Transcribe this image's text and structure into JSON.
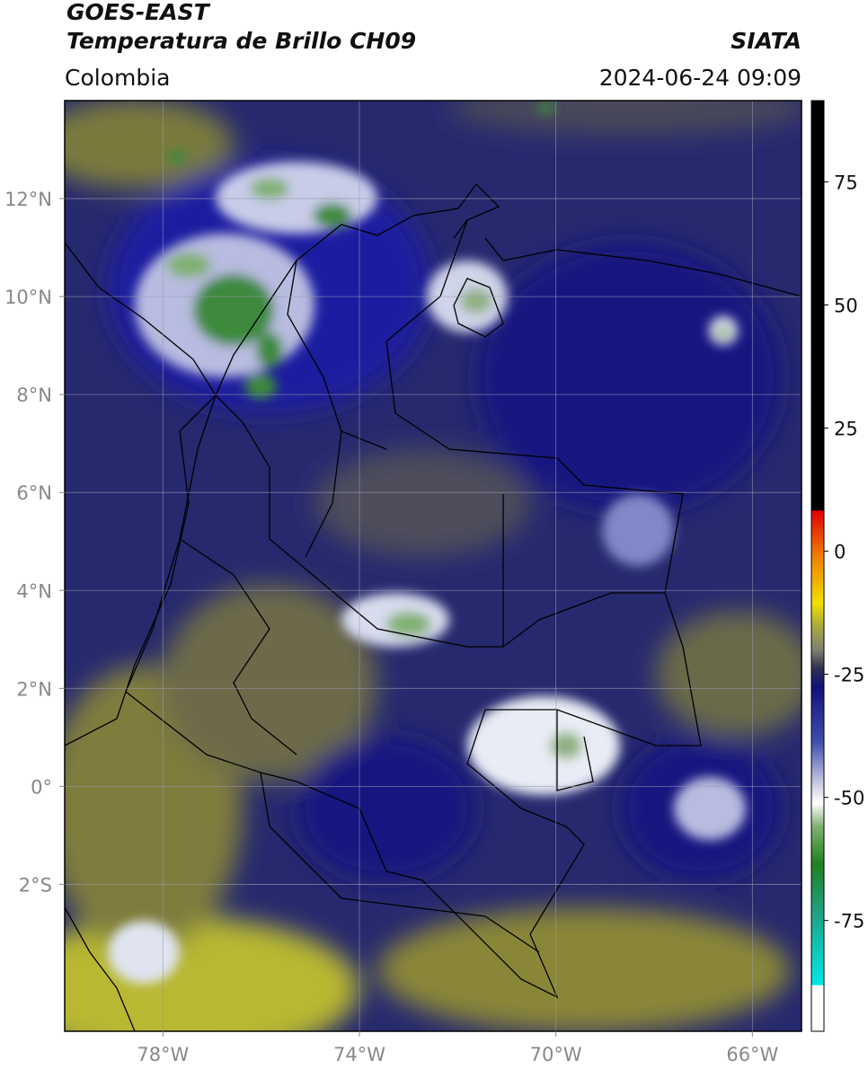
{
  "header": {
    "title": "GOES-EAST",
    "subtitle": "Temperatura de Brillo CH09",
    "source": "SIATA",
    "region": "Colombia",
    "datetime": "2024-06-24 09:09"
  },
  "map": {
    "lonlim": [
      -80,
      -65
    ],
    "latlim": [
      -5,
      14
    ],
    "lon_ticks": [
      {
        "value": -78,
        "label": "78°W"
      },
      {
        "value": -74,
        "label": "74°W"
      },
      {
        "value": -70,
        "label": "70°W"
      },
      {
        "value": -66,
        "label": "66°W"
      }
    ],
    "lat_ticks": [
      {
        "value": 12,
        "label": "12°N"
      },
      {
        "value": 10,
        "label": "10°N"
      },
      {
        "value": 8,
        "label": "8°N"
      },
      {
        "value": 6,
        "label": "6°N"
      },
      {
        "value": 4,
        "label": "4°N"
      },
      {
        "value": 2,
        "label": "2°N"
      },
      {
        "value": 0,
        "label": "0°"
      },
      {
        "value": -2,
        "label": "2°S"
      }
    ]
  },
  "colorbar": {
    "range": [
      -97.5,
      91.5
    ],
    "ticks": [
      75,
      50,
      25,
      0,
      -25,
      -50,
      -75
    ]
  }
}
